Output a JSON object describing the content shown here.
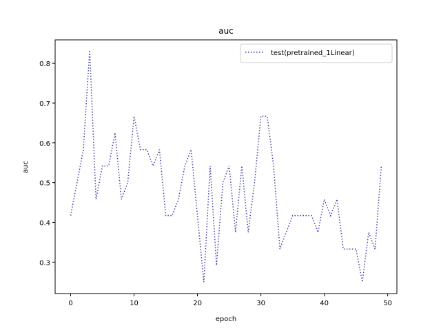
{
  "chart_data": {
    "type": "line",
    "title": "auc",
    "xlabel": "epoch",
    "ylabel": "auc",
    "xlim": [
      -2.45,
      51.45
    ],
    "ylim": [
      0.221,
      0.859
    ],
    "xticks": [
      0,
      10,
      20,
      30,
      40,
      50
    ],
    "yticks": [
      0.3,
      0.4,
      0.5,
      0.6,
      0.7,
      0.8
    ],
    "xtick_labels": [
      "0",
      "10",
      "20",
      "30",
      "40",
      "50"
    ],
    "ytick_labels": [
      "0.3",
      "0.4",
      "0.5",
      "0.6",
      "0.7",
      "0.8"
    ],
    "grid": false,
    "legend_position": "upper right",
    "series": [
      {
        "name": "test(pretrained_1Linear)",
        "color": "#3f3fa8",
        "style": "dotted",
        "x": [
          0,
          1,
          2,
          3,
          4,
          5,
          6,
          7,
          8,
          9,
          10,
          11,
          12,
          13,
          14,
          15,
          16,
          17,
          18,
          19,
          20,
          21,
          22,
          23,
          24,
          25,
          26,
          27,
          28,
          29,
          30,
          31,
          32,
          33,
          34,
          35,
          36,
          37,
          38,
          39,
          40,
          41,
          42,
          43,
          44,
          45,
          46,
          47,
          48,
          49
        ],
        "values": [
          0.417,
          0.5,
          0.583,
          0.833,
          0.458,
          0.542,
          0.542,
          0.625,
          0.458,
          0.5,
          0.667,
          0.583,
          0.583,
          0.542,
          0.583,
          0.417,
          0.417,
          0.458,
          0.542,
          0.583,
          0.417,
          0.25,
          0.542,
          0.292,
          0.5,
          0.542,
          0.375,
          0.542,
          0.375,
          0.5,
          0.667,
          0.667,
          0.542,
          0.333,
          0.375,
          0.417,
          0.417,
          0.417,
          0.417,
          0.375,
          0.458,
          0.417,
          0.458,
          0.333,
          0.333,
          0.333,
          0.25,
          0.375,
          0.333,
          0.542
        ]
      }
    ]
  }
}
